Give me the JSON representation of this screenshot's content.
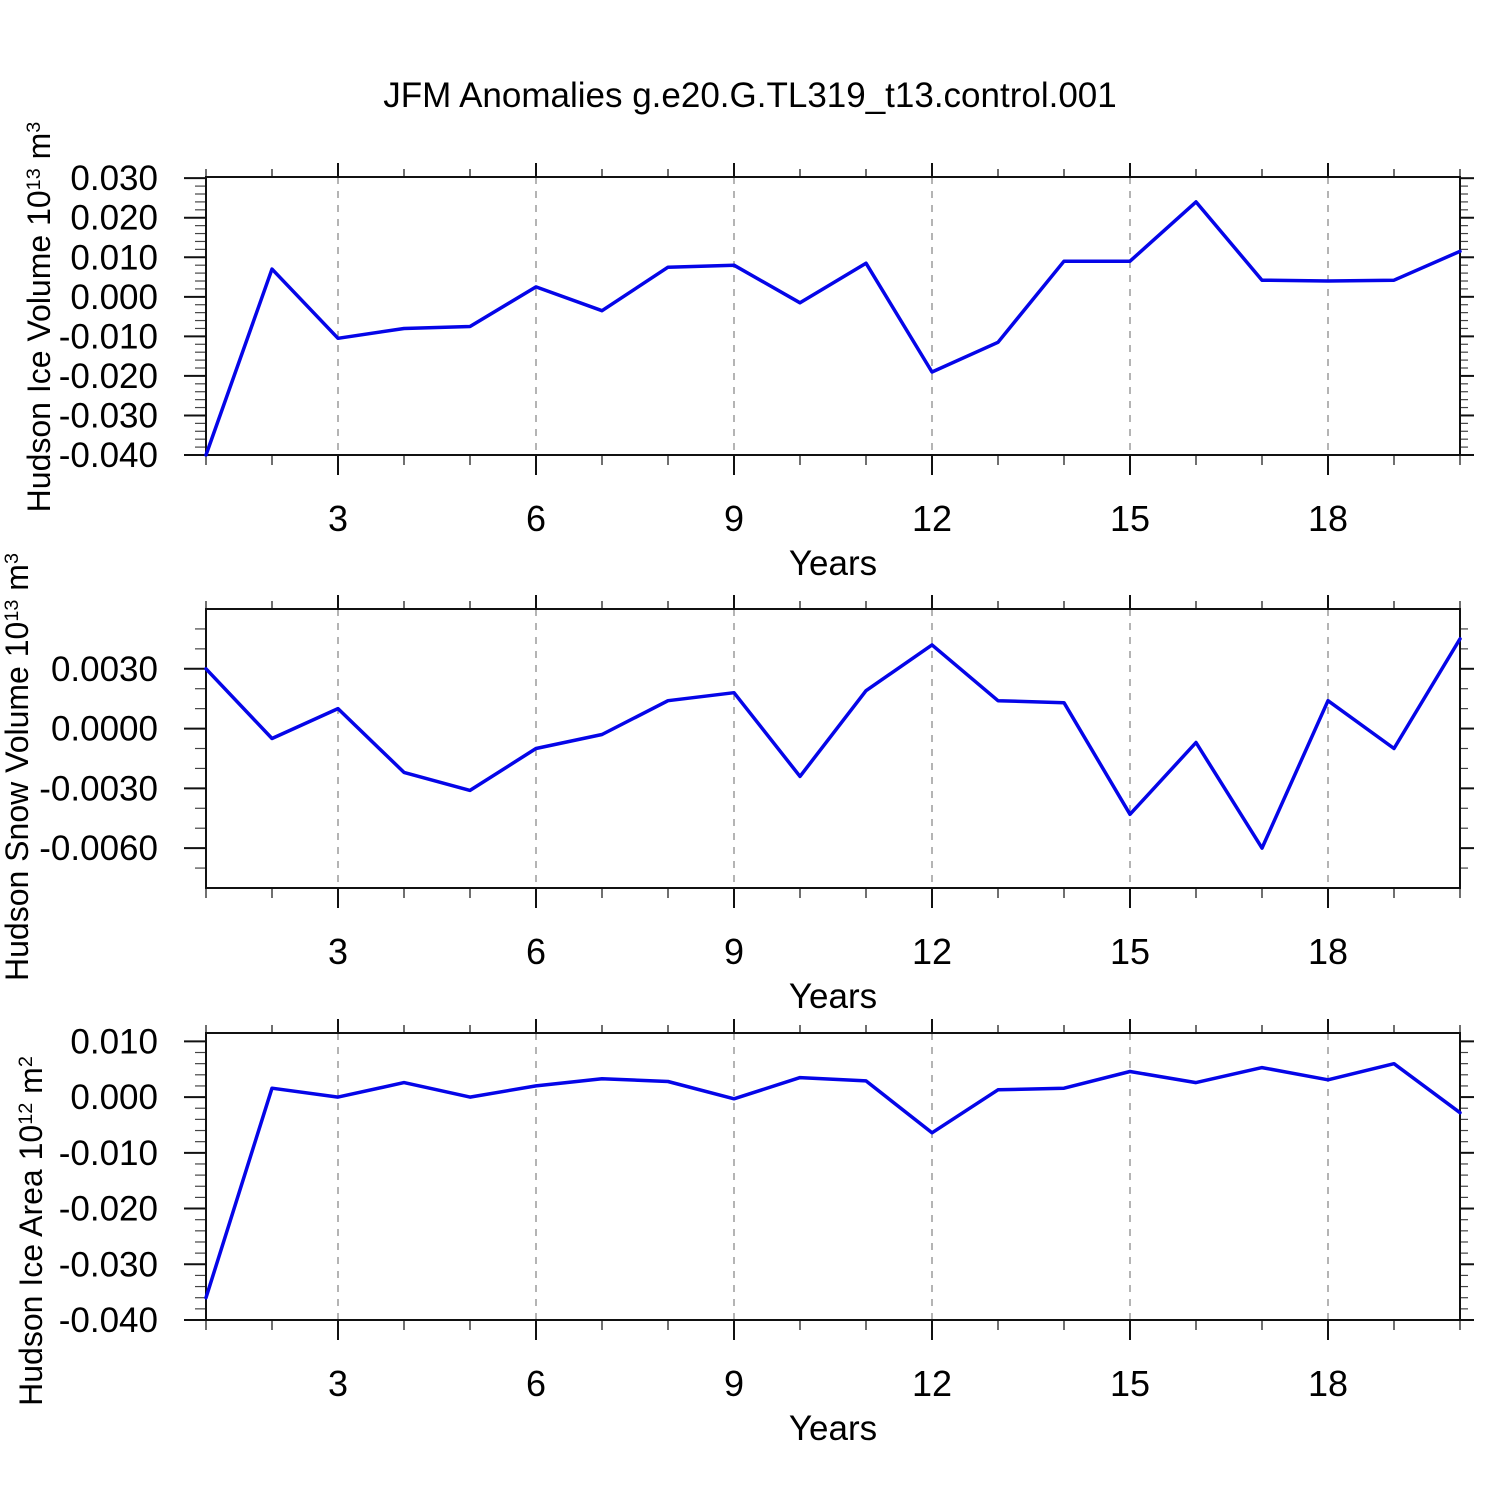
{
  "title": "JFM Anomalies g.e20.G.TL319_t13.control.001",
  "chart_data": {
    "type": "line",
    "title": "JFM Anomalies g.e20.G.TL319_t13.control.001",
    "x": [
      1,
      2,
      3,
      4,
      5,
      6,
      7,
      8,
      9,
      10,
      11,
      12,
      13,
      14,
      15,
      16,
      17,
      18,
      19,
      20
    ],
    "xlabel": "Years",
    "xlim": [
      1,
      20
    ],
    "xtick_values": [
      3,
      6,
      9,
      12,
      15,
      18
    ],
    "xtick_labels": [
      "3",
      "6",
      "9",
      "12",
      "15",
      "18"
    ],
    "grid": "vertical dashed gridlines at labeled x ticks only",
    "legend": "none",
    "line_color": "#0505e8",
    "gridline_color": "#8c8c8c",
    "axis_color": "#111111",
    "panels": [
      {
        "name": "hudson-ice-volume",
        "ylabel_parts": {
          "prefix": "Hudson Ice Volume 10",
          "exp": "13",
          "unit": " m",
          "unit_exp": "3"
        },
        "ylim": [
          -0.04,
          0.0303
        ],
        "ytick_values": [
          0.03,
          0.02,
          0.01,
          0.0,
          -0.01,
          -0.02,
          -0.03,
          -0.04
        ],
        "ytick_labels": [
          "0.030",
          "0.020",
          "0.010",
          "0.000",
          "-0.010",
          "-0.020",
          "-0.030",
          "-0.040"
        ],
        "y_minor_step": 0.002,
        "values": [
          -0.04,
          0.007,
          -0.0105,
          -0.008,
          -0.0075,
          0.0025,
          -0.0035,
          0.0075,
          0.008,
          -0.0015,
          0.0085,
          -0.019,
          -0.0115,
          0.009,
          0.009,
          0.024,
          0.0042,
          0.004,
          0.0042,
          0.0115
        ]
      },
      {
        "name": "hudson-snow-volume",
        "ylabel_parts": {
          "prefix": "Hudson Snow Volume 10",
          "exp": "13",
          "unit": " m",
          "unit_exp": "3"
        },
        "ylim": [
          -0.008,
          0.006
        ],
        "ytick_values": [
          0.003,
          0.0,
          -0.003,
          -0.006
        ],
        "ytick_labels": [
          "0.0030",
          "0.0000",
          "-0.0030",
          "-0.0060"
        ],
        "y_minor_step": 0.001,
        "values": [
          0.003,
          -0.0005,
          0.001,
          -0.0022,
          -0.0031,
          -0.001,
          -0.0003,
          0.0014,
          0.0018,
          -0.0024,
          0.0019,
          0.0042,
          0.0014,
          0.0013,
          -0.0043,
          -0.0007,
          -0.006,
          0.0014,
          -0.001,
          0.0045
        ]
      },
      {
        "name": "hudson-ice-area",
        "ylabel_parts": {
          "prefix": "Hudson Ice Area 10",
          "exp": "12",
          "unit": " m",
          "unit_exp": "2"
        },
        "ylim": [
          -0.04,
          0.0115
        ],
        "ytick_values": [
          0.01,
          0.0,
          -0.01,
          -0.02,
          -0.03,
          -0.04
        ],
        "ytick_labels": [
          "0.010",
          "0.000",
          "-0.010",
          "-0.020",
          "-0.030",
          "-0.040"
        ],
        "y_minor_step": 0.002,
        "values": [
          -0.036,
          0.0016,
          0.0,
          0.0026,
          0.0,
          0.002,
          0.0033,
          0.0028,
          -0.0003,
          0.0035,
          0.0029,
          -0.0064,
          0.0013,
          0.0016,
          0.0046,
          0.0026,
          0.0053,
          0.0031,
          0.006,
          -0.0028
        ]
      }
    ]
  }
}
